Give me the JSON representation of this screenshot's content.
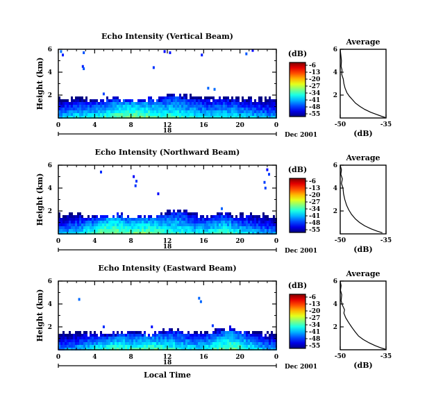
{
  "chart_data": [
    {
      "type": "heatmap",
      "title": "Echo Intensity (Vertical Beam)",
      "ylabel": "Height (km)",
      "xlim": [
        0,
        24
      ],
      "ylim": [
        0,
        6
      ],
      "x_ticks": [
        "0",
        "4",
        "8",
        "12",
        "16",
        "20",
        "0"
      ],
      "y_ticks": [
        "6",
        "4",
        "2"
      ],
      "date_day": "18",
      "date_month_year": "Dec 2001",
      "colorbar": {
        "unit": "(dB)",
        "ticks": [
          "-6",
          "-13",
          "-20",
          "-27",
          "-34",
          "-41",
          "-48",
          "-55"
        ],
        "range": [
          -55,
          -6
        ]
      },
      "layer_top_km": [
        1.7,
        1.7,
        1.8,
        1.8,
        1.7,
        1.7,
        1.8,
        1.8,
        1.7,
        1.7,
        1.8,
        1.8,
        2.1,
        2.2,
        2.0,
        1.9,
        1.9,
        1.8,
        1.9,
        1.8,
        1.8,
        1.8,
        1.8,
        1.8,
        1.8
      ],
      "near_surface_peak_dB": [
        -40,
        -38,
        -37,
        -37,
        -36,
        -34,
        -32,
        -31,
        -30,
        -30,
        -31,
        -33,
        -34,
        -33,
        -35,
        -36,
        -37,
        -37,
        -36,
        -36,
        -37,
        -38,
        -39,
        -40,
        -40
      ],
      "scattered_echoes": [
        {
          "t": 0.3,
          "h": 5.8
        },
        {
          "t": 0.5,
          "h": 5.5
        },
        {
          "t": 2.8,
          "h": 5.7
        },
        {
          "t": 2.7,
          "h": 4.5
        },
        {
          "t": 2.8,
          "h": 4.3
        },
        {
          "t": 10.5,
          "h": 4.4
        },
        {
          "t": 11.7,
          "h": 5.8
        },
        {
          "t": 12.3,
          "h": 5.7
        },
        {
          "t": 15.8,
          "h": 5.5
        },
        {
          "t": 20.7,
          "h": 5.6
        },
        {
          "t": 21.4,
          "h": 5.9
        },
        {
          "t": 5.0,
          "h": 2.1
        },
        {
          "t": 16.5,
          "h": 2.6
        },
        {
          "t": 17.2,
          "h": 2.5
        }
      ],
      "average_profile": {
        "title": "Average",
        "xlabel": "(dB)",
        "x_ticks": [
          "-50",
          "-35"
        ],
        "y_ticks": [
          "6",
          "4",
          "2"
        ],
        "xlim": [
          -50,
          -35
        ],
        "ylim": [
          0,
          6
        ],
        "points": [
          {
            "x": -50.0,
            "y": 6.0
          },
          {
            "x": -49.8,
            "y": 5.5
          },
          {
            "x": -49.6,
            "y": 5.0
          },
          {
            "x": -49.7,
            "y": 4.5
          },
          {
            "x": -49.4,
            "y": 4.2
          },
          {
            "x": -49.5,
            "y": 3.8
          },
          {
            "x": -49.0,
            "y": 3.4
          },
          {
            "x": -48.8,
            "y": 3.0
          },
          {
            "x": -48.4,
            "y": 2.6
          },
          {
            "x": -47.8,
            "y": 2.2
          },
          {
            "x": -47.0,
            "y": 1.9
          },
          {
            "x": -46.0,
            "y": 1.6
          },
          {
            "x": -45.0,
            "y": 1.3
          },
          {
            "x": -43.5,
            "y": 1.0
          },
          {
            "x": -42.0,
            "y": 0.75
          },
          {
            "x": -40.0,
            "y": 0.5
          },
          {
            "x": -38.0,
            "y": 0.3
          },
          {
            "x": -36.5,
            "y": 0.15
          },
          {
            "x": -35.3,
            "y": 0.05
          }
        ]
      }
    },
    {
      "type": "heatmap",
      "title": "Echo Intensity (Northward Beam)",
      "ylabel": "Height (km)",
      "xlim": [
        0,
        24
      ],
      "ylim": [
        0,
        6
      ],
      "x_ticks": [
        "0",
        "4",
        "8",
        "12",
        "16",
        "20",
        "0"
      ],
      "y_ticks": [
        "6",
        "4",
        "2"
      ],
      "date_day": "18",
      "date_month_year": "Dec 2001",
      "colorbar": {
        "unit": "(dB)",
        "ticks": [
          "-6",
          "-13",
          "-20",
          "-27",
          "-34",
          "-41",
          "-48",
          "-55"
        ],
        "range": [
          -55,
          -6
        ]
      },
      "layer_top_km": [
        1.7,
        1.8,
        1.8,
        1.7,
        1.6,
        1.6,
        1.7,
        1.8,
        1.7,
        1.6,
        1.6,
        1.8,
        2.0,
        2.2,
        2.1,
        1.8,
        1.7,
        1.8,
        1.9,
        1.8,
        1.7,
        1.8,
        1.8,
        1.7,
        1.7
      ],
      "near_surface_peak_dB": [
        -42,
        -40,
        -38,
        -36,
        -33,
        -30,
        -29,
        -31,
        -32,
        -31,
        -30,
        -32,
        -34,
        -34,
        -35,
        -36,
        -36,
        -35,
        -33,
        -34,
        -36,
        -38,
        -40,
        -41,
        -42
      ],
      "scattered_echoes": [
        {
          "t": 4.7,
          "h": 5.4
        },
        {
          "t": 8.3,
          "h": 5.0
        },
        {
          "t": 8.6,
          "h": 4.6
        },
        {
          "t": 8.5,
          "h": 4.2
        },
        {
          "t": 23.0,
          "h": 5.6
        },
        {
          "t": 23.2,
          "h": 5.2
        },
        {
          "t": 22.7,
          "h": 4.5
        },
        {
          "t": 22.8,
          "h": 4.0
        },
        {
          "t": 11.0,
          "h": 3.5
        },
        {
          "t": 18.0,
          "h": 2.2
        }
      ],
      "average_profile": {
        "title": "Average",
        "xlabel": "(dB)",
        "x_ticks": [
          "-50",
          "-35"
        ],
        "y_ticks": [
          "6",
          "4",
          "2"
        ],
        "xlim": [
          -50,
          -35
        ],
        "ylim": [
          0,
          6
        ],
        "points": [
          {
            "x": -50.0,
            "y": 6.0
          },
          {
            "x": -49.6,
            "y": 5.6
          },
          {
            "x": -49.8,
            "y": 5.2
          },
          {
            "x": -49.3,
            "y": 4.8
          },
          {
            "x": -49.6,
            "y": 4.4
          },
          {
            "x": -49.1,
            "y": 4.0
          },
          {
            "x": -48.9,
            "y": 3.5
          },
          {
            "x": -48.5,
            "y": 3.0
          },
          {
            "x": -47.9,
            "y": 2.5
          },
          {
            "x": -47.2,
            "y": 2.1
          },
          {
            "x": -46.3,
            "y": 1.7
          },
          {
            "x": -45.0,
            "y": 1.3
          },
          {
            "x": -43.7,
            "y": 1.0
          },
          {
            "x": -42.0,
            "y": 0.7
          },
          {
            "x": -40.0,
            "y": 0.45
          },
          {
            "x": -38.0,
            "y": 0.25
          },
          {
            "x": -36.2,
            "y": 0.1
          }
        ]
      }
    },
    {
      "type": "heatmap",
      "title": "Echo Intensity (Eastward Beam)",
      "ylabel": "Height (km)",
      "xlabel": "Local Time",
      "xlim": [
        0,
        24
      ],
      "ylim": [
        0,
        6
      ],
      "x_ticks": [
        "0",
        "4",
        "8",
        "12",
        "16",
        "20",
        "0"
      ],
      "y_ticks": [
        "6",
        "4",
        "2"
      ],
      "date_day": "18",
      "date_month_year": "Dec 2001",
      "colorbar": {
        "unit": "(dB)",
        "ticks": [
          "-6",
          "-13",
          "-20",
          "-27",
          "-34",
          "-41",
          "-48",
          "-55"
        ],
        "range": [
          -55,
          -6
        ]
      },
      "layer_top_km": [
        1.5,
        1.6,
        1.6,
        1.5,
        1.5,
        1.5,
        1.5,
        1.6,
        1.6,
        1.5,
        1.5,
        1.6,
        1.9,
        1.9,
        1.7,
        1.6,
        1.6,
        1.7,
        1.8,
        2.0,
        1.8,
        1.7,
        1.6,
        1.5,
        1.5
      ],
      "near_surface_peak_dB": [
        -42,
        -41,
        -40,
        -38,
        -36,
        -34,
        -33,
        -33,
        -34,
        -33,
        -32,
        -33,
        -34,
        -35,
        -36,
        -37,
        -36,
        -34,
        -32,
        -31,
        -33,
        -35,
        -38,
        -40,
        -41
      ],
      "scattered_echoes": [
        {
          "t": 2.3,
          "h": 4.4
        },
        {
          "t": 15.5,
          "h": 4.5
        },
        {
          "t": 15.7,
          "h": 4.2
        },
        {
          "t": 5.0,
          "h": 2.0
        },
        {
          "t": 10.3,
          "h": 2.0
        },
        {
          "t": 17.0,
          "h": 2.1
        }
      ],
      "average_profile": {
        "title": "Average",
        "xlabel": "(dB)",
        "x_ticks": [
          "-50",
          "-35"
        ],
        "y_ticks": [
          "6",
          "4",
          "2"
        ],
        "xlim": [
          -50,
          -35
        ],
        "ylim": [
          0,
          6
        ],
        "points": [
          {
            "x": -50.0,
            "y": 6.0
          },
          {
            "x": -49.7,
            "y": 5.6
          },
          {
            "x": -49.9,
            "y": 5.2
          },
          {
            "x": -49.5,
            "y": 4.8
          },
          {
            "x": -49.7,
            "y": 4.3
          },
          {
            "x": -49.3,
            "y": 3.9
          },
          {
            "x": -48.6,
            "y": 3.5
          },
          {
            "x": -48.8,
            "y": 3.2
          },
          {
            "x": -48.2,
            "y": 2.8
          },
          {
            "x": -47.3,
            "y": 2.4
          },
          {
            "x": -46.3,
            "y": 2.0
          },
          {
            "x": -45.2,
            "y": 1.6
          },
          {
            "x": -44.0,
            "y": 1.2
          },
          {
            "x": -42.5,
            "y": 0.9
          },
          {
            "x": -40.5,
            "y": 0.6
          },
          {
            "x": -38.5,
            "y": 0.35
          },
          {
            "x": -36.5,
            "y": 0.15
          },
          {
            "x": -35.2,
            "y": 0.05
          }
        ]
      }
    }
  ]
}
